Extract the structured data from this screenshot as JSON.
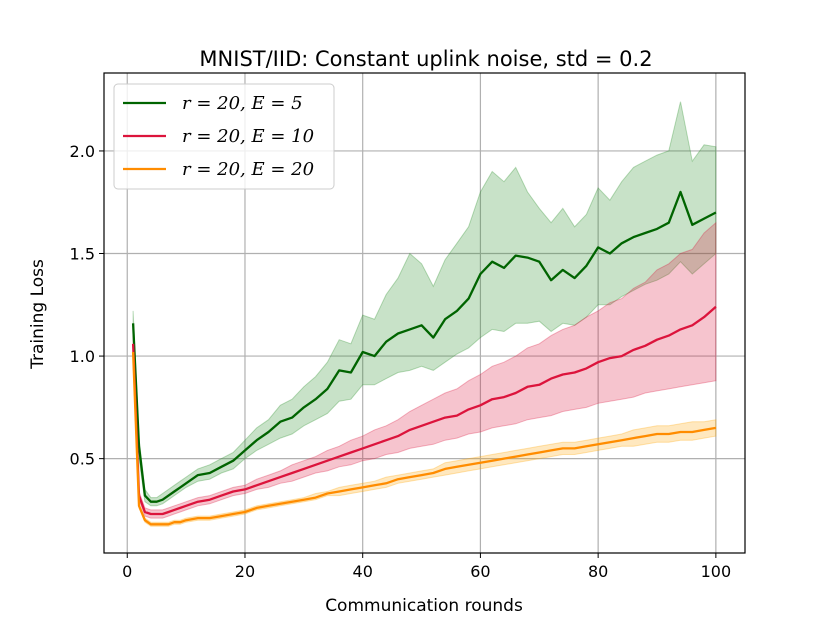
{
  "chart_data": {
    "type": "line",
    "title": "MNIST/IID: Constant uplink noise, std = 0.2",
    "xlabel": "Communication rounds",
    "ylabel": "Training Loss",
    "xlim": [
      -3.95,
      104.95
    ],
    "ylim": [
      0.04,
      2.38
    ],
    "xticks": [
      0,
      20,
      40,
      60,
      80,
      100
    ],
    "xtick_labels": [
      "0",
      "20",
      "40",
      "60",
      "80",
      "100"
    ],
    "yticks": [
      0.5,
      1.0,
      1.5,
      2.0
    ],
    "ytick_labels": [
      "0.5",
      "1.0",
      "1.5",
      "2.0"
    ],
    "grid": true,
    "legend_position": "top-left",
    "series": [
      {
        "name": "r = 20, E = 5",
        "color": "#006400",
        "band_color": "#228b22",
        "x": [
          1,
          2,
          3,
          4,
          5,
          6,
          7,
          8,
          9,
          10,
          12,
          14,
          16,
          18,
          20,
          22,
          24,
          26,
          28,
          30,
          32,
          34,
          36,
          38,
          40,
          42,
          44,
          46,
          48,
          50,
          52,
          54,
          56,
          58,
          60,
          62,
          64,
          66,
          68,
          70,
          72,
          74,
          76,
          78,
          80,
          82,
          84,
          86,
          88,
          90,
          92,
          94,
          96,
          98,
          100
        ],
        "values": [
          1.16,
          0.56,
          0.32,
          0.29,
          0.29,
          0.3,
          0.32,
          0.34,
          0.36,
          0.38,
          0.42,
          0.43,
          0.46,
          0.49,
          0.54,
          0.59,
          0.63,
          0.68,
          0.7,
          0.75,
          0.79,
          0.84,
          0.93,
          0.92,
          1.02,
          1.0,
          1.07,
          1.11,
          1.13,
          1.15,
          1.09,
          1.18,
          1.22,
          1.28,
          1.4,
          1.46,
          1.43,
          1.49,
          1.48,
          1.46,
          1.37,
          1.42,
          1.38,
          1.44,
          1.53,
          1.5,
          1.55,
          1.58,
          1.6,
          1.62,
          1.65,
          1.8,
          1.64,
          1.67,
          1.7
        ],
        "lower": [
          1.1,
          0.5,
          0.29,
          0.27,
          0.27,
          0.28,
          0.3,
          0.32,
          0.34,
          0.36,
          0.39,
          0.4,
          0.43,
          0.45,
          0.5,
          0.54,
          0.57,
          0.6,
          0.62,
          0.66,
          0.69,
          0.72,
          0.78,
          0.79,
          0.86,
          0.86,
          0.89,
          0.92,
          0.93,
          0.95,
          0.93,
          0.97,
          1.01,
          1.04,
          1.09,
          1.13,
          1.12,
          1.16,
          1.16,
          1.17,
          1.12,
          1.16,
          1.15,
          1.19,
          1.25,
          1.25,
          1.29,
          1.32,
          1.35,
          1.37,
          1.4,
          1.46,
          1.4,
          1.45,
          1.5
        ],
        "upper": [
          1.22,
          0.6,
          0.35,
          0.31,
          0.31,
          0.33,
          0.35,
          0.37,
          0.39,
          0.41,
          0.45,
          0.47,
          0.5,
          0.53,
          0.59,
          0.65,
          0.69,
          0.76,
          0.79,
          0.85,
          0.9,
          0.97,
          1.08,
          1.06,
          1.2,
          1.18,
          1.3,
          1.38,
          1.5,
          1.45,
          1.34,
          1.47,
          1.55,
          1.63,
          1.8,
          1.9,
          1.85,
          1.92,
          1.8,
          1.72,
          1.65,
          1.72,
          1.63,
          1.69,
          1.82,
          1.76,
          1.85,
          1.92,
          1.95,
          1.98,
          2.0,
          2.24,
          1.95,
          2.03,
          2.02
        ]
      },
      {
        "name": "r = 20, E = 10",
        "color": "#dc143c",
        "band_color": "#dc143c",
        "x": [
          1,
          2,
          3,
          4,
          5,
          6,
          7,
          8,
          9,
          10,
          12,
          14,
          16,
          18,
          20,
          22,
          24,
          26,
          28,
          30,
          32,
          34,
          36,
          38,
          40,
          42,
          44,
          46,
          48,
          50,
          52,
          54,
          56,
          58,
          60,
          62,
          64,
          66,
          68,
          70,
          72,
          74,
          76,
          78,
          80,
          82,
          84,
          86,
          88,
          90,
          92,
          94,
          96,
          98,
          100
        ],
        "values": [
          1.06,
          0.32,
          0.24,
          0.23,
          0.23,
          0.23,
          0.24,
          0.25,
          0.26,
          0.27,
          0.29,
          0.3,
          0.32,
          0.34,
          0.35,
          0.37,
          0.39,
          0.41,
          0.43,
          0.45,
          0.47,
          0.49,
          0.51,
          0.53,
          0.55,
          0.57,
          0.59,
          0.61,
          0.64,
          0.66,
          0.68,
          0.7,
          0.71,
          0.74,
          0.76,
          0.79,
          0.8,
          0.82,
          0.85,
          0.86,
          0.89,
          0.91,
          0.92,
          0.94,
          0.97,
          0.99,
          1.0,
          1.03,
          1.05,
          1.08,
          1.1,
          1.13,
          1.15,
          1.19,
          1.24
        ],
        "lower": [
          1.02,
          0.3,
          0.22,
          0.21,
          0.21,
          0.21,
          0.22,
          0.23,
          0.24,
          0.25,
          0.27,
          0.28,
          0.3,
          0.32,
          0.33,
          0.35,
          0.36,
          0.38,
          0.39,
          0.41,
          0.43,
          0.44,
          0.46,
          0.47,
          0.49,
          0.5,
          0.52,
          0.53,
          0.55,
          0.56,
          0.57,
          0.59,
          0.6,
          0.62,
          0.63,
          0.65,
          0.66,
          0.67,
          0.69,
          0.7,
          0.71,
          0.73,
          0.74,
          0.75,
          0.77,
          0.78,
          0.79,
          0.8,
          0.82,
          0.83,
          0.84,
          0.85,
          0.86,
          0.87,
          0.88
        ],
        "upper": [
          1.1,
          0.34,
          0.26,
          0.25,
          0.25,
          0.25,
          0.26,
          0.27,
          0.28,
          0.29,
          0.31,
          0.32,
          0.34,
          0.36,
          0.37,
          0.4,
          0.42,
          0.44,
          0.47,
          0.49,
          0.51,
          0.54,
          0.56,
          0.59,
          0.61,
          0.64,
          0.66,
          0.69,
          0.73,
          0.76,
          0.79,
          0.82,
          0.84,
          0.88,
          0.91,
          0.95,
          0.97,
          1.0,
          1.04,
          1.06,
          1.1,
          1.13,
          1.15,
          1.19,
          1.22,
          1.26,
          1.28,
          1.33,
          1.36,
          1.42,
          1.45,
          1.5,
          1.52,
          1.6,
          1.65
        ]
      },
      {
        "name": "r = 20, E = 20",
        "color": "#ff8c00",
        "band_color": "#ffa500",
        "x": [
          1,
          2,
          3,
          4,
          5,
          6,
          7,
          8,
          9,
          10,
          12,
          14,
          16,
          18,
          20,
          22,
          24,
          26,
          28,
          30,
          32,
          34,
          36,
          38,
          40,
          42,
          44,
          46,
          48,
          50,
          52,
          54,
          56,
          58,
          60,
          62,
          64,
          66,
          68,
          70,
          72,
          74,
          76,
          78,
          80,
          82,
          84,
          86,
          88,
          90,
          92,
          94,
          96,
          98,
          100
        ],
        "values": [
          1.02,
          0.27,
          0.2,
          0.18,
          0.18,
          0.18,
          0.18,
          0.19,
          0.19,
          0.2,
          0.21,
          0.21,
          0.22,
          0.23,
          0.24,
          0.26,
          0.27,
          0.28,
          0.29,
          0.3,
          0.31,
          0.33,
          0.34,
          0.35,
          0.36,
          0.37,
          0.38,
          0.4,
          0.41,
          0.42,
          0.43,
          0.45,
          0.46,
          0.47,
          0.48,
          0.49,
          0.5,
          0.51,
          0.52,
          0.53,
          0.54,
          0.55,
          0.55,
          0.56,
          0.57,
          0.58,
          0.59,
          0.6,
          0.61,
          0.62,
          0.62,
          0.63,
          0.63,
          0.64,
          0.65
        ],
        "lower": [
          0.99,
          0.26,
          0.19,
          0.17,
          0.17,
          0.17,
          0.17,
          0.18,
          0.18,
          0.19,
          0.2,
          0.2,
          0.21,
          0.22,
          0.23,
          0.25,
          0.26,
          0.27,
          0.28,
          0.29,
          0.3,
          0.32,
          0.32,
          0.33,
          0.34,
          0.35,
          0.36,
          0.38,
          0.39,
          0.4,
          0.41,
          0.42,
          0.43,
          0.44,
          0.45,
          0.46,
          0.47,
          0.48,
          0.49,
          0.5,
          0.51,
          0.52,
          0.52,
          0.53,
          0.54,
          0.55,
          0.56,
          0.56,
          0.57,
          0.58,
          0.58,
          0.59,
          0.59,
          0.6,
          0.61
        ],
        "upper": [
          1.05,
          0.28,
          0.21,
          0.19,
          0.19,
          0.19,
          0.19,
          0.2,
          0.2,
          0.21,
          0.22,
          0.22,
          0.23,
          0.24,
          0.25,
          0.27,
          0.28,
          0.29,
          0.3,
          0.31,
          0.33,
          0.34,
          0.36,
          0.37,
          0.38,
          0.39,
          0.41,
          0.42,
          0.43,
          0.44,
          0.45,
          0.48,
          0.49,
          0.5,
          0.51,
          0.52,
          0.53,
          0.54,
          0.55,
          0.56,
          0.57,
          0.58,
          0.58,
          0.59,
          0.6,
          0.61,
          0.62,
          0.64,
          0.65,
          0.66,
          0.66,
          0.67,
          0.68,
          0.68,
          0.69
        ]
      }
    ]
  }
}
